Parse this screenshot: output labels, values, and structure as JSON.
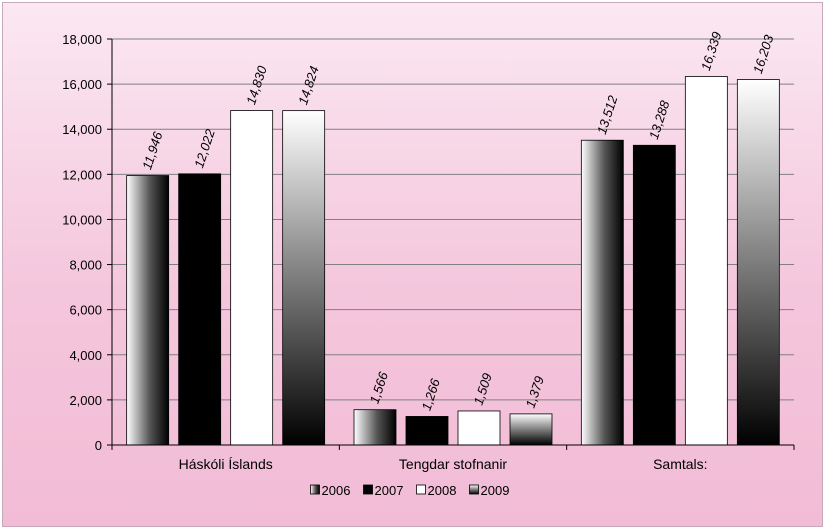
{
  "chart_data": {
    "type": "bar",
    "title": "",
    "xlabel": "",
    "ylabel": "",
    "categories": [
      "Háskóli Íslands",
      "Tengdar stofnanir",
      "Samtals:"
    ],
    "series": [
      {
        "name": "2006",
        "values": [
          11946,
          1566,
          13512
        ],
        "labels": [
          "11,946",
          "1,566",
          "13,512"
        ]
      },
      {
        "name": "2007",
        "values": [
          12022,
          1266,
          13288
        ],
        "labels": [
          "12,022",
          "1,266",
          "13,288"
        ]
      },
      {
        "name": "2008",
        "values": [
          14830,
          1509,
          16339
        ],
        "labels": [
          "14,830",
          "1,509",
          "16,339"
        ]
      },
      {
        "name": "2009",
        "values": [
          14824,
          1379,
          16203
        ],
        "labels": [
          "14,824",
          "1,379",
          "16,203"
        ]
      }
    ],
    "ylim": [
      0,
      18000
    ],
    "yticks": [
      0,
      2000,
      4000,
      6000,
      8000,
      10000,
      12000,
      14000,
      16000,
      18000
    ],
    "ytick_labels": [
      "0",
      "2,000",
      "4,000",
      "6,000",
      "8,000",
      "10,000",
      "12,000",
      "14,000",
      "16,000",
      "18,000"
    ],
    "grid": true,
    "legend_position": "bottom",
    "series_fills": [
      "gradient-black-right",
      "solid-black",
      "white",
      "gradient-white-to-black-down"
    ],
    "colors": {
      "background": "#f4c6dc",
      "grid": "#808080",
      "axis": "#000000"
    }
  }
}
